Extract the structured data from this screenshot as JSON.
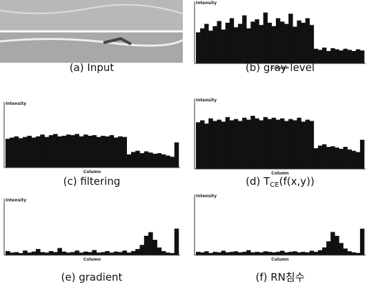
{
  "panels": [
    {
      "caption": "(a) Input"
    },
    {
      "caption": "(b) gray level",
      "y_label": "Intensity",
      "x_label": "Column",
      "values": [
        55,
        62,
        70,
        58,
        66,
        75,
        60,
        72,
        80,
        64,
        70,
        85,
        62,
        74,
        78,
        68,
        90,
        72,
        66,
        80,
        74,
        70,
        88,
        65,
        76,
        72,
        80,
        68,
        26,
        24,
        28,
        22,
        27,
        25,
        23,
        26,
        24,
        22,
        25,
        23
      ]
    },
    {
      "caption": "(c) filtering",
      "y_label": "Intensity",
      "x_label": "Column",
      "values": [
        48,
        50,
        52,
        49,
        51,
        53,
        50,
        52,
        55,
        51,
        54,
        56,
        52,
        53,
        55,
        54,
        56,
        52,
        55,
        53,
        54,
        51,
        53,
        52,
        54,
        50,
        52,
        51,
        22,
        26,
        28,
        24,
        27,
        25,
        23,
        24,
        22,
        20,
        18,
        42
      ]
    },
    {
      "caption": "(d) T",
      "caption_sub": "CE",
      "caption_rest": "(f(x,y))",
      "y_label": "Intensity",
      "x_label": "Column",
      "values": [
        72,
        75,
        70,
        78,
        74,
        76,
        73,
        80,
        75,
        77,
        74,
        79,
        76,
        82,
        78,
        75,
        80,
        77,
        79,
        76,
        78,
        74,
        77,
        75,
        79,
        73,
        76,
        74,
        32,
        36,
        38,
        34,
        35,
        33,
        31,
        34,
        30,
        28,
        26,
        45
      ]
    },
    {
      "caption": "(e) gradient",
      "y_label": "Intensity",
      "x_label": "Column",
      "values": [
        8,
        5,
        6,
        4,
        9,
        5,
        7,
        12,
        6,
        5,
        8,
        6,
        14,
        7,
        5,
        6,
        9,
        5,
        7,
        6,
        10,
        5,
        6,
        8,
        5,
        7,
        6,
        9,
        5,
        8,
        12,
        20,
        38,
        45,
        30,
        15,
        8,
        5,
        4,
        52
      ]
    },
    {
      "caption": "(f) RN침수",
      "y_label": "Intensity",
      "x_label": "Column",
      "values": [
        6,
        5,
        7,
        4,
        6,
        5,
        8,
        5,
        6,
        7,
        5,
        6,
        9,
        5,
        6,
        5,
        7,
        6,
        5,
        6,
        8,
        5,
        6,
        7,
        5,
        6,
        5,
        8,
        6,
        9,
        14,
        25,
        42,
        35,
        22,
        12,
        7,
        5,
        4,
        48
      ]
    }
  ]
}
